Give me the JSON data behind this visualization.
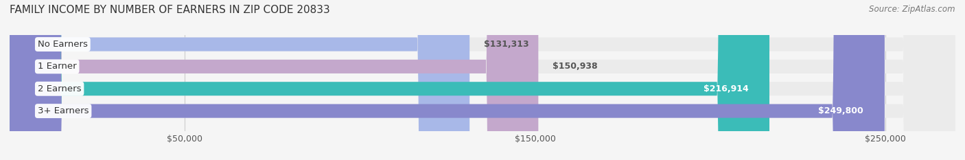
{
  "title": "FAMILY INCOME BY NUMBER OF EARNERS IN ZIP CODE 20833",
  "source": "Source: ZipAtlas.com",
  "categories": [
    "No Earners",
    "1 Earner",
    "2 Earners",
    "3+ Earners"
  ],
  "values": [
    131313,
    150938,
    216914,
    249800
  ],
  "bar_colors": [
    "#a8b8e8",
    "#c4a8cc",
    "#3bbcb8",
    "#8888cc"
  ],
  "bg_track_color": "#ebebeb",
  "label_bg_color": "#ffffff",
  "xmax": 270000,
  "xticks": [
    50000,
    150000,
    250000
  ],
  "xtick_labels": [
    "$50,000",
    "$150,000",
    "$250,000"
  ],
  "value_labels": [
    "$131,313",
    "$150,938",
    "$216,914",
    "$249,800"
  ],
  "value_label_color_dark": "#555555",
  "value_label_color_light": "#ffffff",
  "bar_height": 0.62,
  "background_color": "#f5f5f5",
  "title_fontsize": 11,
  "source_fontsize": 8.5,
  "category_fontsize": 9.5,
  "value_fontsize": 9
}
